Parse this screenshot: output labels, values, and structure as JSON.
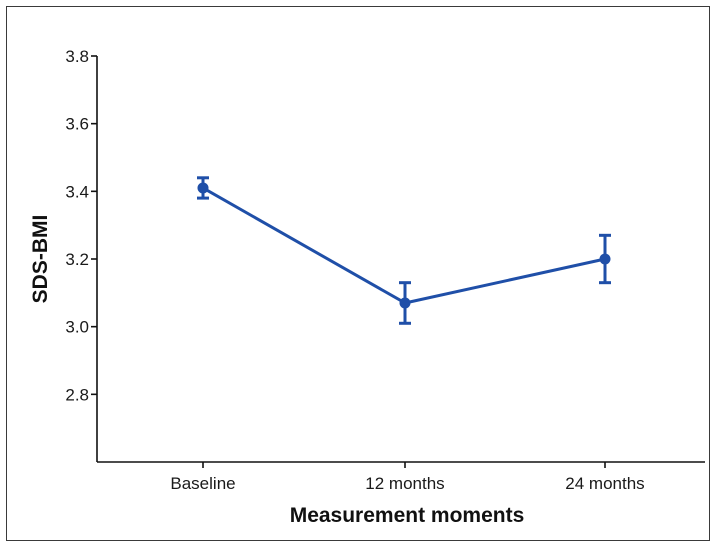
{
  "chart_data": {
    "type": "line",
    "title": "",
    "xlabel": "Measurement moments",
    "ylabel": "SDS-BMI",
    "categories": [
      "Baseline",
      "12 months",
      "24 months"
    ],
    "series": [
      {
        "values": [
          3.41,
          3.07,
          3.2
        ],
        "error_low": [
          3.38,
          3.01,
          3.13
        ],
        "error_high": [
          3.44,
          3.13,
          3.27
        ],
        "color": "#1f4fa8"
      }
    ],
    "yticks": [
      "2.8",
      "3.0",
      "3.2",
      "3.4",
      "3.6",
      "3.8"
    ],
    "ylim": [
      2.6,
      3.8
    ],
    "grid": false,
    "legend": "none"
  }
}
